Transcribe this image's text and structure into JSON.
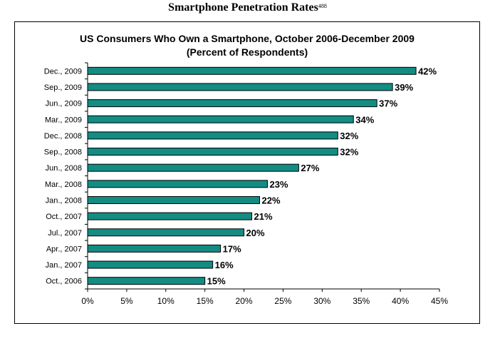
{
  "page": {
    "heading": "Smartphone Penetration Rates",
    "heading_footnote": "488"
  },
  "chart_data": {
    "type": "bar",
    "orientation": "horizontal",
    "title": "US Consumers Who Own a Smartphone, October 2006-December 2009",
    "subtitle": "(Percent of Respondents)",
    "categories": [
      "Dec., 2009",
      "Sep., 2009",
      "Jun., 2009",
      "Mar., 2009",
      "Dec., 2008",
      "Sep., 2008",
      "Jun., 2008",
      "Mar., 2008",
      "Jan., 2008",
      "Oct., 2007",
      "Jul., 2007",
      "Apr., 2007",
      "Jan., 2007",
      "Oct., 2006"
    ],
    "values": [
      42,
      39,
      37,
      34,
      32,
      32,
      27,
      23,
      22,
      21,
      20,
      17,
      16,
      15
    ],
    "data_labels": [
      "42%",
      "39%",
      "37%",
      "34%",
      "32%",
      "32%",
      "27%",
      "23%",
      "22%",
      "21%",
      "20%",
      "17%",
      "16%",
      "15%"
    ],
    "xlim": [
      0,
      45
    ],
    "x_ticks": [
      0,
      5,
      10,
      15,
      20,
      25,
      30,
      35,
      40,
      45
    ],
    "x_tick_labels": [
      "0%",
      "5%",
      "10%",
      "15%",
      "20%",
      "25%",
      "30%",
      "35%",
      "40%",
      "45%"
    ],
    "xlabel": "",
    "ylabel": "",
    "grid": false,
    "legend": "none",
    "bar_color": "#138c84"
  }
}
